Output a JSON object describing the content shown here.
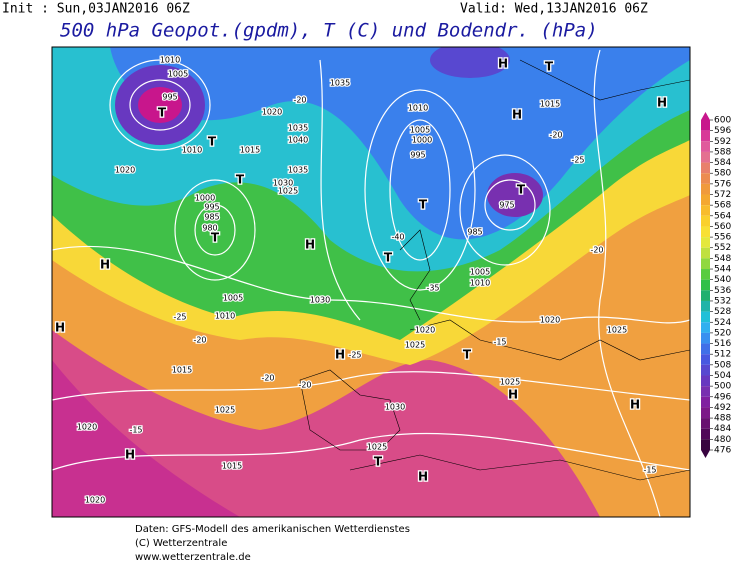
{
  "header": {
    "init": "Init : Sun,03JAN2016 06Z",
    "valid": "Valid: Wed,13JAN2016 06Z",
    "title": "500 hPa Geopot.(gpdm), T (C) und Bodendr. (hPa)"
  },
  "colorbar": {
    "ticks": [
      600,
      596,
      592,
      588,
      584,
      580,
      576,
      572,
      568,
      564,
      560,
      556,
      552,
      548,
      544,
      540,
      536,
      532,
      528,
      524,
      520,
      516,
      512,
      508,
      504,
      500,
      496,
      492,
      488,
      484,
      480,
      476
    ],
    "colors": [
      "#c8168c",
      "#d83a98",
      "#e05a9c",
      "#e47090",
      "#e8806c",
      "#ec8c50",
      "#f09a3c",
      "#f4a830",
      "#f8bc2c",
      "#fad02c",
      "#f8e034",
      "#e4e83c",
      "#c0e040",
      "#90d840",
      "#58cc40",
      "#30c048",
      "#20b070",
      "#20b4a8",
      "#20c0d8",
      "#30b0f0",
      "#3890f0",
      "#4070e8",
      "#4858e0",
      "#5848d0",
      "#6838c0",
      "#7830b0",
      "#8020a0",
      "#7c1888",
      "#681070",
      "#500858",
      "#380440"
    ]
  },
  "map_labels": [
    "1010",
    "1005",
    "995",
    "T",
    "1010",
    "1020",
    "T",
    "1015",
    "1020",
    "1035",
    "1040",
    "1035",
    "1030",
    "1025",
    "T",
    "1000",
    "995",
    "985",
    "980",
    "T",
    "H",
    "1005",
    "1010",
    "1030",
    "H",
    "H",
    "1015",
    "H",
    "1020",
    "1025",
    "T",
    "1020",
    "1025",
    "1025",
    "H",
    "1030",
    "1025",
    "1015",
    "1025",
    "T",
    "H",
    "1020",
    "H",
    "1020",
    "H",
    "1015",
    "H",
    "T",
    "1035",
    "1010",
    "1005",
    "1000",
    "995",
    "T",
    "T",
    "975",
    "985",
    "1005",
    "1010",
    "H",
    "T",
    "H",
    "-20",
    "-25",
    "-20",
    "-20",
    "-15",
    "-15",
    "-25",
    "-20",
    "-20",
    "-15",
    "-40",
    "-35",
    "-25",
    "-20"
  ],
  "footer": [
    "Daten: GFS-Modell des amerikanischen Wetterdienstes",
    "(C) Wetterzentrale",
    "www.wetterzentrale.de"
  ]
}
